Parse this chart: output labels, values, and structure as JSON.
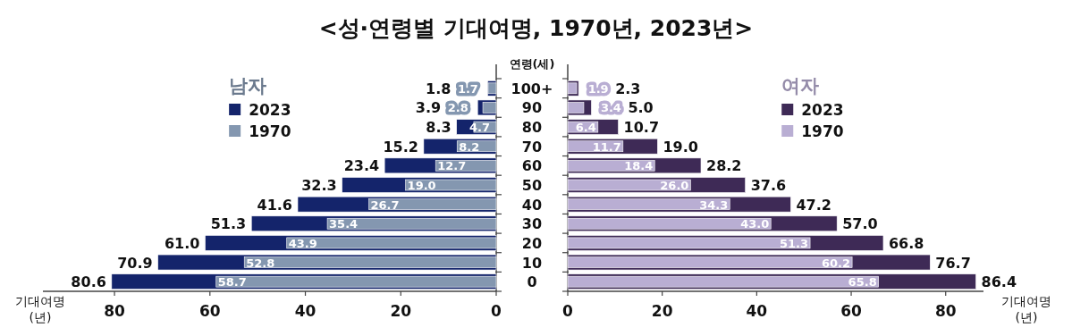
{
  "chart_data": [
    {
      "type": "bar",
      "orientation": "horizontal",
      "title": "<성·연령별 기대여명, 1970년, 2023년>",
      "ylabel": "연령(세)",
      "xlabel": "기대여명\n(년)",
      "legend_title": "남자",
      "legend": "top",
      "categories": [
        "100+",
        "90",
        "80",
        "70",
        "60",
        "50",
        "40",
        "30",
        "20",
        "10",
        "0"
      ],
      "series": [
        {
          "name": "2023",
          "color": "#14246b",
          "values": [
            1.8,
            3.9,
            8.3,
            15.2,
            23.4,
            32.3,
            41.6,
            51.3,
            61.0,
            70.9,
            80.6
          ],
          "value_labels": [
            "1.8",
            "3.9",
            "8.3",
            "15.2",
            "23.4",
            "32.3",
            "41.6",
            "51.3",
            "61.0",
            "70.9",
            "80.6"
          ]
        },
        {
          "name": "1970",
          "color": "#8497b0",
          "values": [
            1.7,
            2.8,
            4.7,
            8.2,
            12.7,
            19.0,
            26.7,
            35.4,
            43.9,
            52.8,
            58.7
          ],
          "value_labels": [
            "1.7",
            "2.8",
            "4.7",
            "8.2",
            "12.7",
            "19.0",
            "26.7",
            "35.4",
            "43.9",
            "52.8",
            "58.7"
          ]
        }
      ],
      "xlim": [
        95,
        0
      ],
      "xticks": [
        80,
        60,
        40,
        20,
        0
      ]
    },
    {
      "type": "bar",
      "orientation": "horizontal",
      "xlabel": "기대여명\n(년)",
      "legend_title": "여자",
      "legend": "top",
      "categories": [
        null,
        null,
        null,
        null,
        null,
        null,
        null,
        null,
        null,
        null,
        null
      ],
      "series": [
        {
          "name": "2023",
          "color": "#3e2a56",
          "values": [
            2.3,
            5.0,
            10.7,
            19.0,
            28.2,
            37.6,
            47.2,
            57.0,
            66.8,
            76.7,
            86.4
          ],
          "value_labels": [
            "2.3",
            "5.0",
            "10.7",
            "19.0",
            "28.2",
            "37.6",
            "47.2",
            "57.0",
            "66.8",
            "76.7",
            "86.4"
          ]
        },
        {
          "name": "1970",
          "color": "#b9aed3",
          "values": [
            1.9,
            3.4,
            6.4,
            11.7,
            18.4,
            26.0,
            34.3,
            43.0,
            51.3,
            60.2,
            65.8
          ],
          "value_labels": [
            "1.9",
            "3.4",
            "6.4",
            "11.7",
            "18.4",
            "26.0",
            "34.3",
            "43.0",
            "51.3",
            "60.2",
            "65.8"
          ]
        }
      ],
      "xlim": [
        0,
        88
      ],
      "xticks": [
        0,
        20,
        40,
        60,
        80
      ]
    }
  ]
}
